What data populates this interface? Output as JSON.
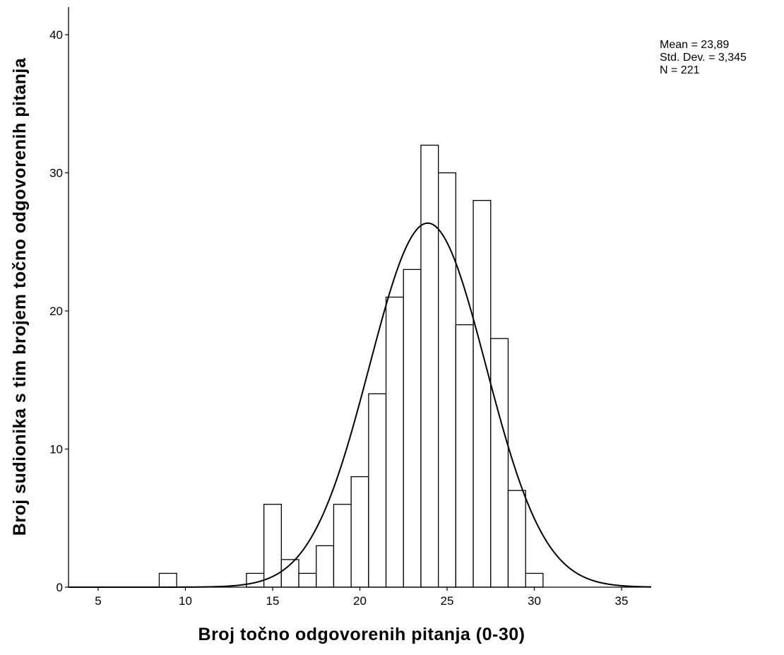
{
  "chart_data": {
    "type": "histogram",
    "xlabel": "Broj točno odgovorenih pitanja (0-30)",
    "ylabel": "Broj sudionika s tim brojem točno odgovorenih pitanja",
    "xlim": [
      3.3,
      36.7
    ],
    "ylim": [
      0,
      42
    ],
    "x_ticks": [
      5,
      10,
      15,
      20,
      25,
      30,
      35
    ],
    "y_ticks": [
      0,
      10,
      20,
      30,
      40
    ],
    "bin_width": 1,
    "bins": [
      {
        "x": 9,
        "count": 1
      },
      {
        "x": 14,
        "count": 1
      },
      {
        "x": 15,
        "count": 6
      },
      {
        "x": 16,
        "count": 2
      },
      {
        "x": 17,
        "count": 1
      },
      {
        "x": 18,
        "count": 3
      },
      {
        "x": 19,
        "count": 6
      },
      {
        "x": 20,
        "count": 8
      },
      {
        "x": 21,
        "count": 14
      },
      {
        "x": 22,
        "count": 21
      },
      {
        "x": 23,
        "count": 23
      },
      {
        "x": 24,
        "count": 32
      },
      {
        "x": 25,
        "count": 30
      },
      {
        "x": 26,
        "count": 19
      },
      {
        "x": 27,
        "count": 28
      },
      {
        "x": 28,
        "count": 18
      },
      {
        "x": 29,
        "count": 7
      },
      {
        "x": 30,
        "count": 1
      }
    ],
    "normal_curve": {
      "mean": 23.89,
      "sd": 3.345,
      "n": 221
    },
    "grid": false
  },
  "stats": {
    "mean_text": "Mean = 23,89",
    "sd_text": "Std. Dev. = 3,345",
    "n_text": "N = 221"
  }
}
